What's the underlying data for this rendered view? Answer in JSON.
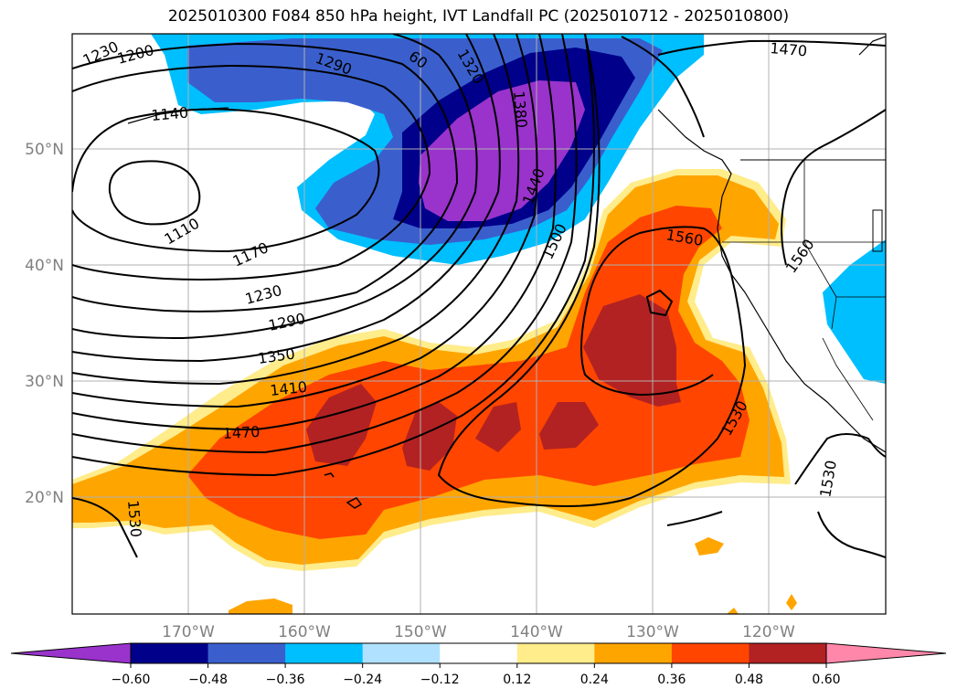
{
  "title": "2025010300 F084 850 hPa height, IVT Landfall PC (2025010712 - 2025010800)",
  "longitude_labels": [
    "170°W",
    "160°W",
    "150°W",
    "140°W",
    "130°W",
    "120°W"
  ],
  "latitude_labels": [
    "50°N",
    "40°N",
    "30°N",
    "20°N"
  ],
  "contour_labels": [
    "1230",
    "1200",
    "1140",
    "1110",
    "1170",
    "1230",
    "1290",
    "1350",
    "1410",
    "1470",
    "1530",
    "1380",
    "1440",
    "1500",
    "1560",
    "1560",
    "1530",
    "1530",
    "1470",
    "60",
    "1320",
    "1290"
  ],
  "colorbar": {
    "ticks": [
      "−0.60",
      "−0.48",
      "−0.36",
      "−0.24",
      "−0.12",
      "0.12",
      "0.24",
      "0.36",
      "0.48",
      "0.60"
    ],
    "colors": [
      "#9933cc",
      "#00008b",
      "#3a5fcd",
      "#00bfff",
      "#b0e2ff",
      "#ffffff",
      "#ffec8b",
      "#ffa500",
      "#ff4500",
      "#b22222",
      "#ff88aa"
    ]
  }
}
